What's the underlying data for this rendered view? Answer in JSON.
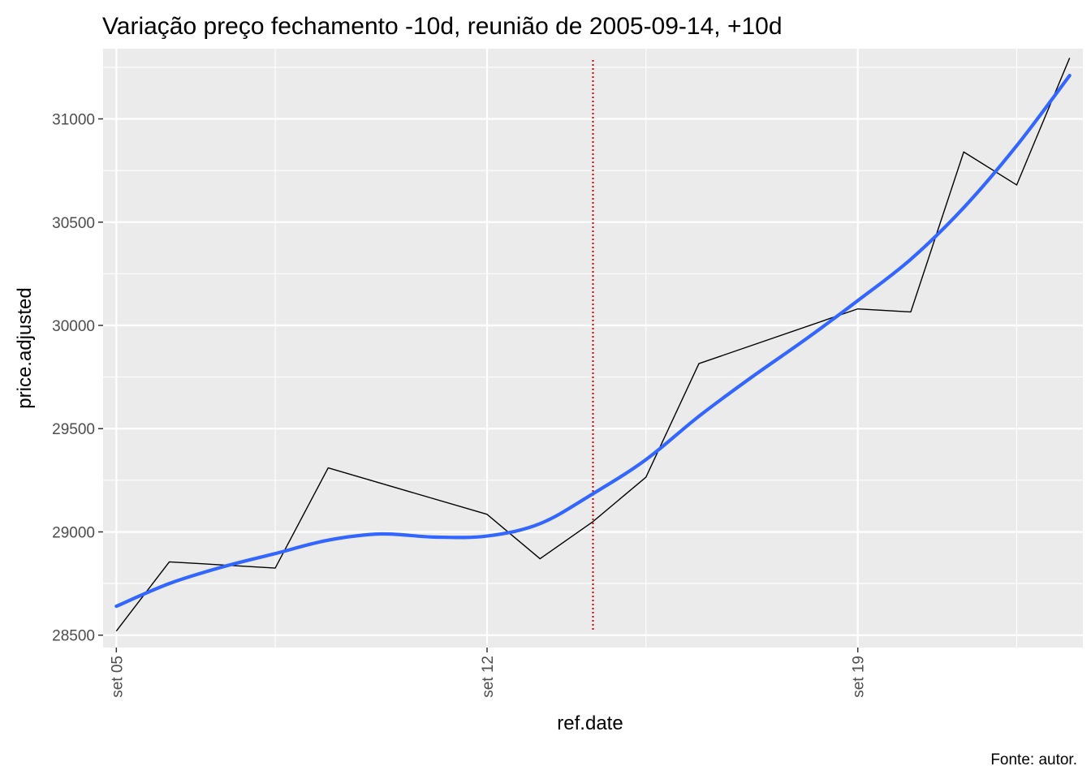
{
  "chart_data": {
    "type": "line",
    "title": "Variação preço fechamento -10d, reunião de 2005-09-14, +10d",
    "xlabel": "ref.date",
    "ylabel": "price.adjusted",
    "caption": "Fonte: autor.",
    "x_ticks": [
      {
        "date": "2005-09-05",
        "label": "set 05"
      },
      {
        "date": "2005-09-12",
        "label": "set 12"
      },
      {
        "date": "2005-09-19",
        "label": "set 19"
      }
    ],
    "y_ticks": [
      28500,
      29000,
      29500,
      30000,
      30500,
      31000
    ],
    "xlim": [
      "2005-09-04",
      "2005-09-23"
    ],
    "ylim": [
      28440,
      31340
    ],
    "grid": true,
    "panel_background": "#ebebeb",
    "series": [
      {
        "color": "#000000",
        "style": "line",
        "points": [
          {
            "date": "2005-09-05",
            "value": 28520
          },
          {
            "date": "2005-09-06",
            "value": 28855
          },
          {
            "date": "2005-09-08",
            "value": 28825
          },
          {
            "date": "2005-09-09",
            "value": 29310
          },
          {
            "date": "2005-09-12",
            "value": 29085
          },
          {
            "date": "2005-09-13",
            "value": 28870
          },
          {
            "date": "2005-09-14",
            "value": 29050
          },
          {
            "date": "2005-09-15",
            "value": 29265
          },
          {
            "date": "2005-09-16",
            "value": 29815
          },
          {
            "date": "2005-09-19",
            "value": 30080
          },
          {
            "date": "2005-09-20",
            "value": 30065
          },
          {
            "date": "2005-09-21",
            "value": 30840
          },
          {
            "date": "2005-09-22",
            "value": 30680
          },
          {
            "date": "2005-09-23",
            "value": 31295
          }
        ]
      },
      {
        "color": "#3366ff",
        "style": "smooth",
        "points": [
          {
            "date": "2005-09-05",
            "value": 28640
          },
          {
            "date": "2005-09-06",
            "value": 28750
          },
          {
            "date": "2005-09-07",
            "value": 28830
          },
          {
            "date": "2005-09-08",
            "value": 28895
          },
          {
            "date": "2005-09-09",
            "value": 28960
          },
          {
            "date": "2005-09-10",
            "value": 28990
          },
          {
            "date": "2005-09-11",
            "value": 28975
          },
          {
            "date": "2005-09-12",
            "value": 28980
          },
          {
            "date": "2005-09-13",
            "value": 29040
          },
          {
            "date": "2005-09-14",
            "value": 29185
          },
          {
            "date": "2005-09-15",
            "value": 29350
          },
          {
            "date": "2005-09-16",
            "value": 29560
          },
          {
            "date": "2005-09-17",
            "value": 29750
          },
          {
            "date": "2005-09-18",
            "value": 29930
          },
          {
            "date": "2005-09-19",
            "value": 30120
          },
          {
            "date": "2005-09-20",
            "value": 30320
          },
          {
            "date": "2005-09-21",
            "value": 30570
          },
          {
            "date": "2005-09-22",
            "value": 30870
          },
          {
            "date": "2005-09-23",
            "value": 31210
          }
        ]
      }
    ],
    "vline": {
      "date": "2005-09-14",
      "color": "#cc0000",
      "style": "dotted",
      "y_range": [
        28520,
        31285
      ]
    }
  }
}
